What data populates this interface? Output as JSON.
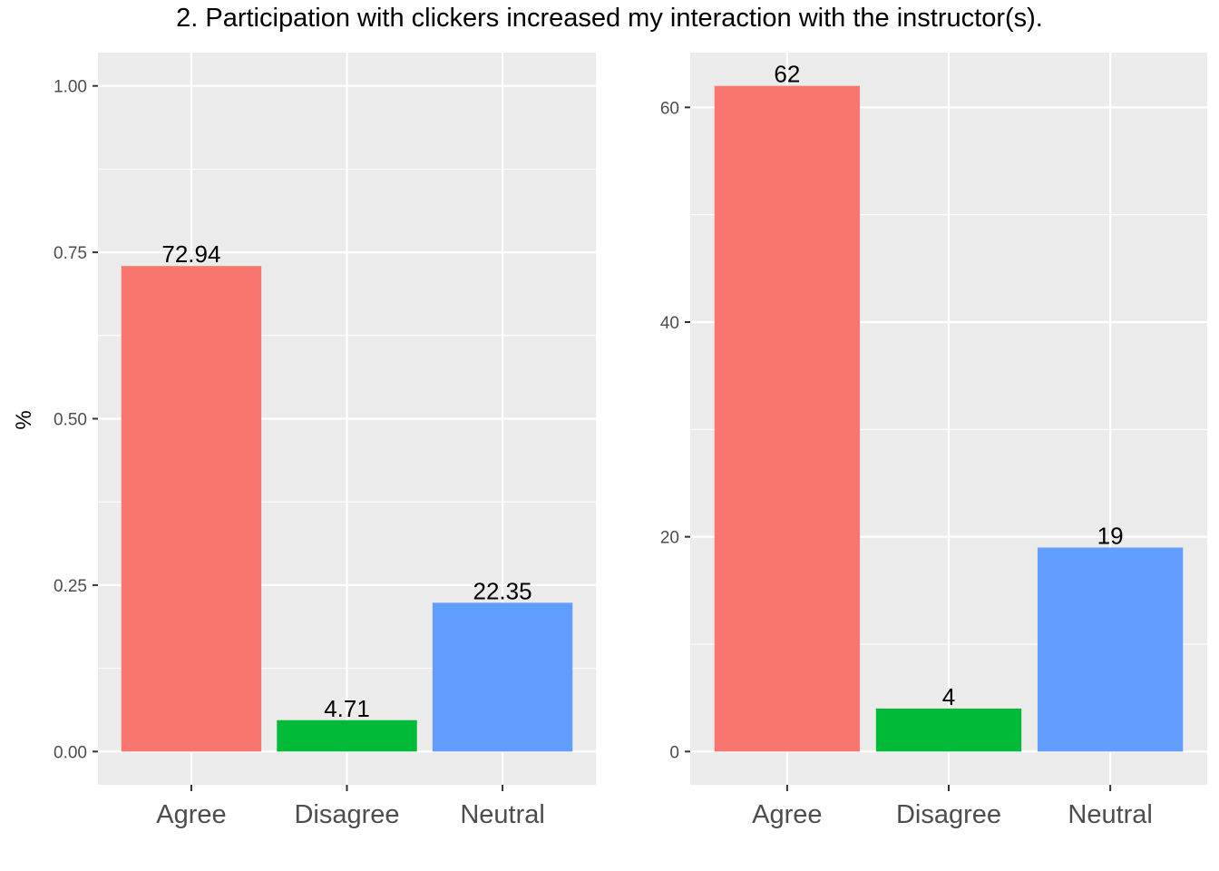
{
  "title": "2. Participation with clickers increased my interaction with the instructor(s).",
  "ylabel": "%",
  "colors": {
    "Agree": "#F8766D",
    "Disagree": "#00BA38",
    "Neutral": "#619CFF",
    "panel": "#EBEBEB",
    "grid": "#FFFFFF",
    "tick": "#4D4D4D"
  },
  "chart_data": [
    {
      "type": "bar",
      "categories": [
        "Agree",
        "Disagree",
        "Neutral"
      ],
      "values": [
        0.7294,
        0.0471,
        0.2235
      ],
      "data_labels": [
        "72.94",
        "4.71",
        "22.35"
      ],
      "ylabel": "%",
      "ylim": [
        -0.05,
        1.05
      ],
      "yticks": [
        0.0,
        0.25,
        0.5,
        0.75,
        1.0
      ],
      "ytick_labels": [
        "0.00",
        "0.25",
        "0.50",
        "0.75",
        "1.00"
      ],
      "grid": true
    },
    {
      "type": "bar",
      "categories": [
        "Agree",
        "Disagree",
        "Neutral"
      ],
      "values": [
        62,
        4,
        19
      ],
      "data_labels": [
        "62",
        "4",
        "19"
      ],
      "ylabel": "",
      "ylim": [
        -3.1,
        65.1
      ],
      "yticks": [
        0,
        20,
        40,
        60
      ],
      "ytick_labels": [
        "0",
        "20",
        "40",
        "60"
      ],
      "grid": true
    }
  ]
}
